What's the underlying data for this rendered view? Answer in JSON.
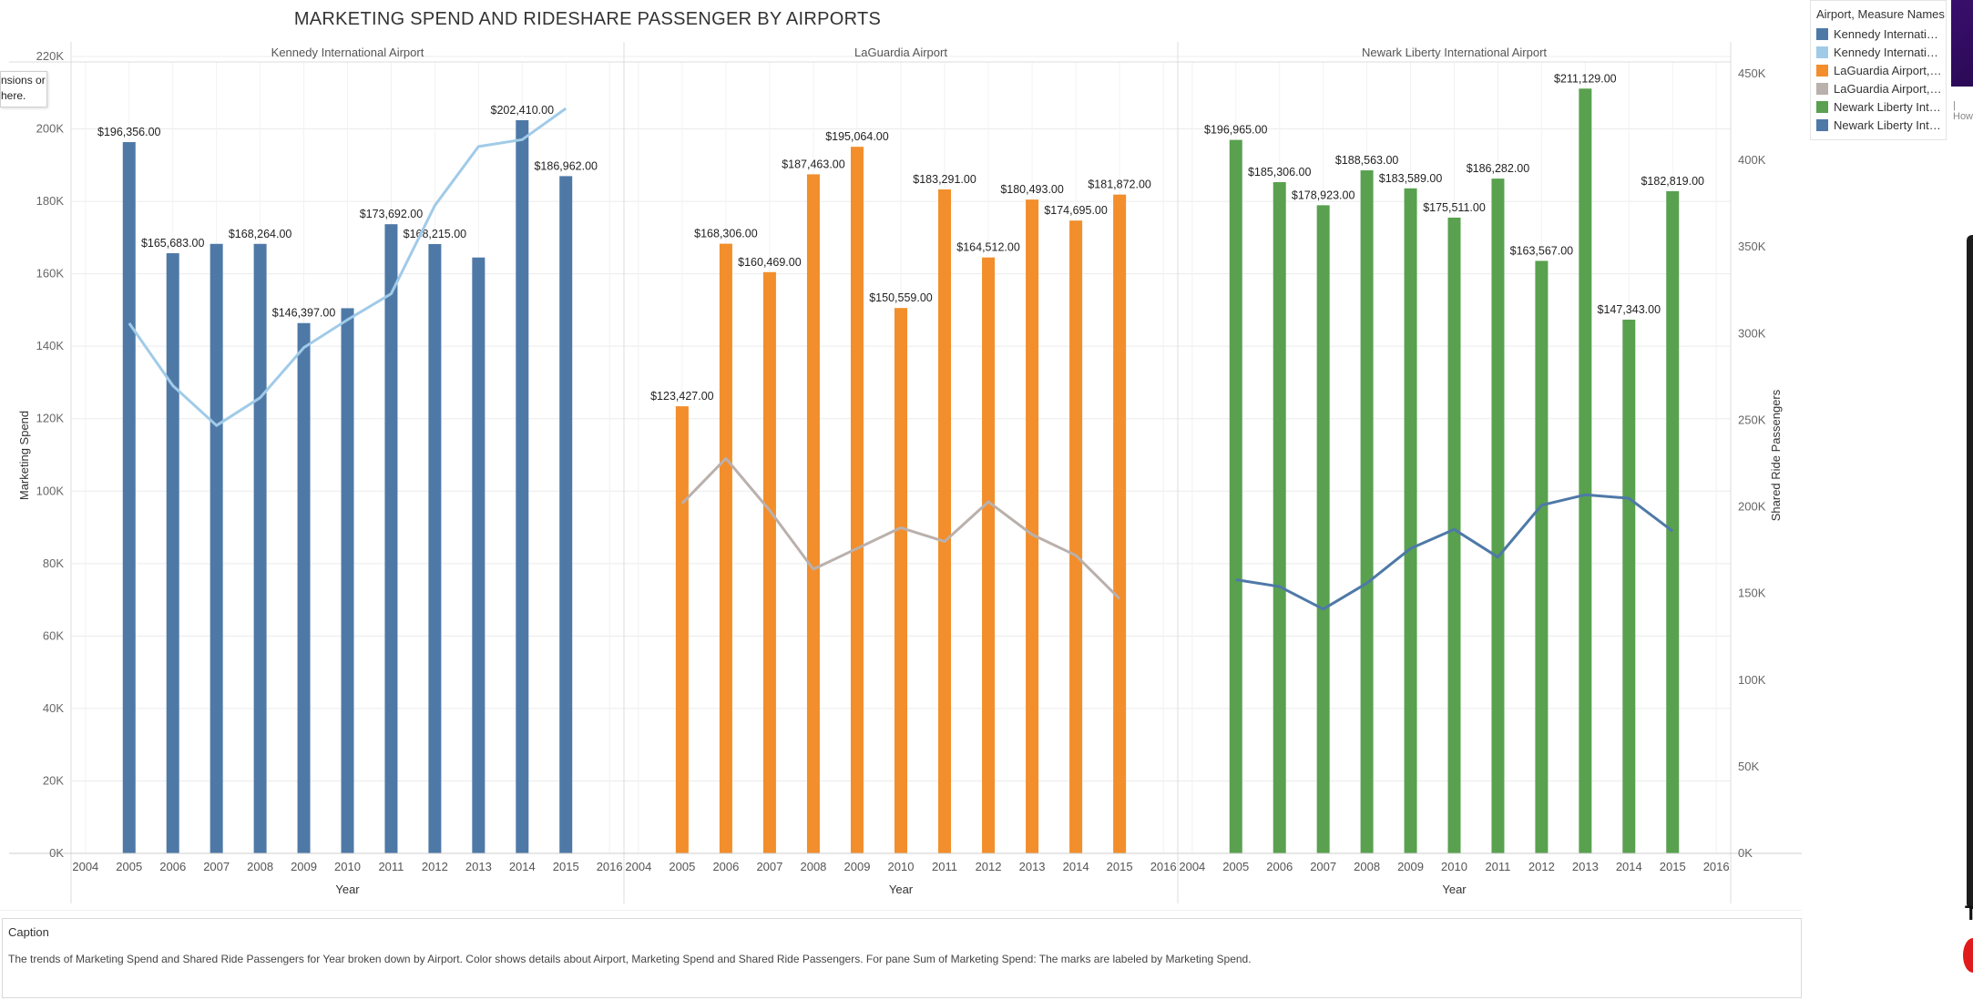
{
  "title": "MARKETING SPEND AND RIDESHARE PASSENGER BY AIRPORTS",
  "tooltip_fragment": [
    "nsions or",
    "here."
  ],
  "edge_fragment_text": "| How",
  "edge_fragment_t": "T",
  "legend": {
    "title": "Airport, Measure Names",
    "items": [
      {
        "label": "Kennedy International Airport, Marketing Spend",
        "color": "#4e79a7"
      },
      {
        "label": "Kennedy International Airport, Shared Ride Passengers",
        "color": "#a0cbe8"
      },
      {
        "label": "LaGuardia Airport, Marketing Spend",
        "color": "#f28e2b"
      },
      {
        "label": "LaGuardia Airport, Shared Ride Passengers",
        "color": "#bab0ac"
      },
      {
        "label": "Newark Liberty International Airport, Marketing Spend",
        "color": "#59a14f"
      },
      {
        "label": "Newark Liberty International Airport, Shared Ride Passengers",
        "color": "#4e79a7"
      }
    ]
  },
  "caption": {
    "title": "Caption",
    "text": "The trends of Marketing Spend and Shared Ride Passengers for Year broken down by Airport.  Color shows details about Airport, Marketing Spend and Shared Ride Passengers.  For pane Sum of Marketing Spend:  The marks are labeled by Marketing Spend."
  },
  "chart_data": {
    "type": "bar",
    "title": "MARKETING SPEND AND RIDESHARE PASSENGER BY AIRPORTS",
    "xlabel": "Year",
    "ylabel": "Marketing Spend",
    "y2label": "Shared Ride Passengers",
    "ylim": [
      0,
      220000
    ],
    "y2lim": [
      0,
      460000
    ],
    "y_ticks": [
      "0K",
      "20K",
      "40K",
      "60K",
      "80K",
      "100K",
      "120K",
      "140K",
      "160K",
      "180K",
      "200K",
      "220K"
    ],
    "y_tick_values": [
      0,
      20000,
      40000,
      60000,
      80000,
      100000,
      120000,
      140000,
      160000,
      180000,
      200000,
      220000
    ],
    "y2_ticks": [
      "0K",
      "50K",
      "100K",
      "150K",
      "200K",
      "250K",
      "300K",
      "350K",
      "400K",
      "450K"
    ],
    "y2_tick_values": [
      0,
      50000,
      100000,
      150000,
      200000,
      250000,
      300000,
      350000,
      400000,
      450000
    ],
    "x_ticks": [
      2004,
      2005,
      2006,
      2007,
      2008,
      2009,
      2010,
      2011,
      2012,
      2013,
      2014,
      2015,
      2016
    ],
    "years": [
      2005,
      2006,
      2007,
      2008,
      2009,
      2010,
      2011,
      2012,
      2013,
      2014,
      2015
    ],
    "panels": [
      {
        "airport": "Kennedy International Airport",
        "bar_color": "#4e79a7",
        "line_color": "#a0cbe8",
        "marketing_spend": [
          196356,
          165683,
          168264,
          168264,
          146397,
          150500,
          173692,
          168215,
          164500,
          202410,
          186962
        ],
        "labels": [
          "$196,356.00",
          "$165,683.00",
          "",
          "$168,264.00",
          "$146,397.00",
          "",
          "$173,692.00",
          "$168,215.00",
          "",
          "$202,410.00",
          "$186,962.00"
        ],
        "shared_ride_passengers": [
          306000,
          270000,
          247000,
          263000,
          292000,
          308000,
          323000,
          374000,
          408000,
          412000,
          430000
        ]
      },
      {
        "airport": "LaGuardia Airport",
        "bar_color": "#f28e2b",
        "line_color": "#bab0ac",
        "marketing_spend": [
          123427,
          168306,
          160469,
          187463,
          195064,
          150559,
          183291,
          164512,
          180493,
          174695,
          181872
        ],
        "labels": [
          "$123,427.00",
          "$168,306.00",
          "$160,469.00",
          "$187,463.00",
          "$195,064.00",
          "$150,559.00",
          "$183,291.00",
          "$164,512.00",
          "$180,493.00",
          "$174,695.00",
          "$181,872.00"
        ],
        "shared_ride_passengers": [
          202000,
          228000,
          198000,
          164000,
          176000,
          188000,
          180000,
          203000,
          184000,
          172000,
          147000
        ]
      },
      {
        "airport": "Newark Liberty International Airport",
        "bar_color": "#59a14f",
        "line_color": "#4e79a7",
        "marketing_spend": [
          196965,
          185306,
          178923,
          188563,
          183589,
          175511,
          186282,
          163567,
          211129,
          147343,
          182819
        ],
        "labels": [
          "$196,965.00",
          "$185,306.00",
          "$178,923.00",
          "$188,563.00",
          "$183,589.00",
          "$175,511.00",
          "$186,282.00",
          "$163,567.00",
          "$211,129.00",
          "$147,343.00",
          "$182,819.00"
        ],
        "shared_ride_passengers": [
          158000,
          154000,
          141000,
          156000,
          176000,
          187000,
          171000,
          201000,
          207000,
          205000,
          186000
        ]
      }
    ]
  }
}
